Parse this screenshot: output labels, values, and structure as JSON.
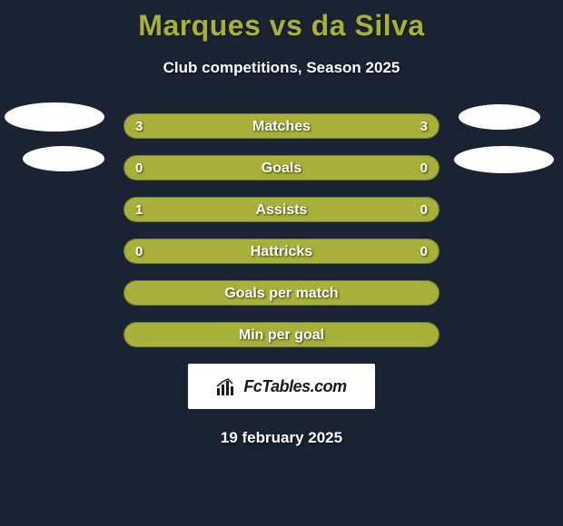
{
  "title": "Marques vs da Silva",
  "subtitle": "Club competitions, Season 2025",
  "date": "19 february 2025",
  "logo_text": "FcTables.com",
  "colors": {
    "background": "#1a2332",
    "accent": "#a8b03a",
    "text": "#ffffff",
    "bar_fill": "#a8b03a",
    "ellipse": "#ffffff"
  },
  "stat_rows": [
    {
      "label": "Matches",
      "left_value": "3",
      "right_value": "3",
      "left_pct": 50,
      "right_pct": 50
    },
    {
      "label": "Goals",
      "left_value": "0",
      "right_value": "0",
      "left_pct": 50,
      "right_pct": 50
    },
    {
      "label": "Assists",
      "left_value": "1",
      "right_value": "0",
      "left_pct": 75,
      "right_pct": 25
    },
    {
      "label": "Hattricks",
      "left_value": "0",
      "right_value": "0",
      "left_pct": 50,
      "right_pct": 50
    },
    {
      "label": "Goals per match",
      "left_value": "",
      "right_value": "",
      "left_pct": 100,
      "right_pct": 0
    },
    {
      "label": "Min per goal",
      "left_value": "",
      "right_value": "",
      "left_pct": 100,
      "right_pct": 0
    }
  ]
}
